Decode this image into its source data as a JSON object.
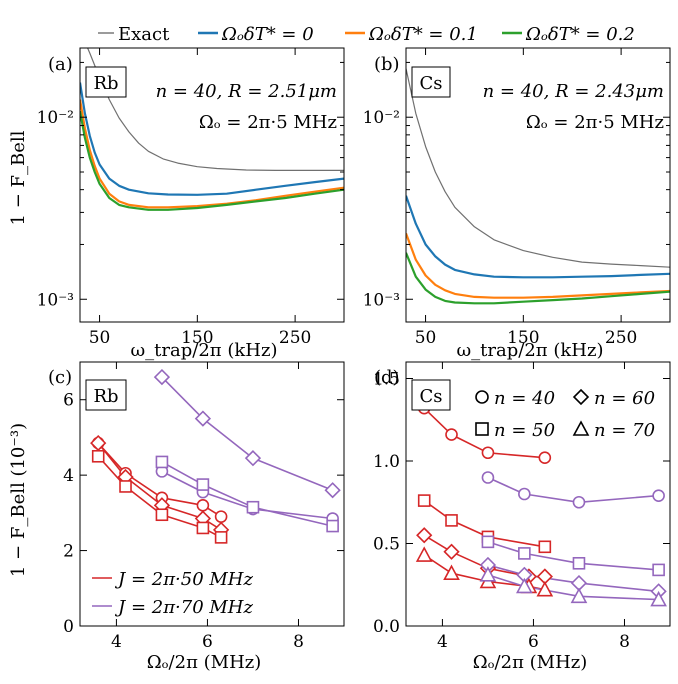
{
  "legend_top": [
    {
      "label": "Exact",
      "color": "#707070"
    },
    {
      "label": "ΩₒδT* = 0",
      "color": "#1f77b4"
    },
    {
      "label": "ΩₒδT* = 0.1",
      "color": "#ff7f0e"
    },
    {
      "label": "ΩₒδT* = 0.2",
      "color": "#2ca02c"
    }
  ],
  "marker_legend": [
    {
      "label": "n = 40",
      "marker": "circle"
    },
    {
      "label": "n = 60",
      "marker": "diamond"
    },
    {
      "label": "n = 50",
      "marker": "square"
    },
    {
      "label": "n = 70",
      "marker": "triangle"
    }
  ],
  "j_legend": [
    {
      "label": "J = 2π·50 MHz",
      "color": "#d62728"
    },
    {
      "label": "J = 2π·70 MHz",
      "color": "#9467bd"
    }
  ],
  "chart_data": [
    {
      "id": "a",
      "type": "line",
      "panel_label": "(a)",
      "species": "Rb",
      "annotation1": "n = 40, R = 2.51μm",
      "annotation2": "Ωₒ = 2π·5 MHz",
      "xlabel": "ω_trap/2π (kHz)",
      "ylabel": "1 − F_Bell",
      "yscale": "log",
      "xlim": [
        30,
        300
      ],
      "ylim": [
        0.00075,
        0.024
      ],
      "xticks": [
        50,
        150,
        250
      ],
      "yticks": [
        {
          "v": 0.001,
          "label": "10⁻³"
        },
        {
          "v": 0.01,
          "label": "10⁻²"
        }
      ],
      "series": [
        {
          "name": "Exact",
          "color": "#707070",
          "width": 1.2,
          "x": [
            30,
            40,
            50,
            60,
            70,
            80,
            90,
            100,
            115,
            130,
            150,
            170,
            200,
            230,
            260,
            300
          ],
          "y": [
            0.03,
            0.0225,
            0.0165,
            0.0125,
            0.0099,
            0.0083,
            0.0072,
            0.0065,
            0.0059,
            0.0056,
            0.00535,
            0.00523,
            0.00513,
            0.0051,
            0.0051,
            0.0051
          ]
        },
        {
          "name": "ΩₒδT* = 0",
          "color": "#1f77b4",
          "width": 2.2,
          "x": [
            30,
            35,
            40,
            45,
            50,
            60,
            70,
            80,
            100,
            120,
            150,
            180,
            210,
            240,
            270,
            300
          ],
          "y": [
            0.0155,
            0.0105,
            0.0079,
            0.0064,
            0.0055,
            0.0046,
            0.0042,
            0.004,
            0.00382,
            0.00376,
            0.00375,
            0.0038,
            0.004,
            0.0042,
            0.0044,
            0.0046
          ]
        },
        {
          "name": "ΩₒδT* = 0.1",
          "color": "#ff7f0e",
          "width": 2.2,
          "x": [
            30,
            35,
            40,
            45,
            50,
            60,
            70,
            80,
            100,
            120,
            150,
            180,
            210,
            240,
            270,
            300
          ],
          "y": [
            0.0125,
            0.0087,
            0.0066,
            0.0054,
            0.0046,
            0.0038,
            0.00345,
            0.0033,
            0.0032,
            0.0032,
            0.00325,
            0.00335,
            0.0035,
            0.0037,
            0.0039,
            0.0041
          ]
        },
        {
          "name": "ΩₒδT* = 0.2",
          "color": "#2ca02c",
          "width": 2.2,
          "x": [
            30,
            35,
            40,
            45,
            50,
            60,
            70,
            80,
            100,
            120,
            150,
            180,
            210,
            240,
            270,
            300
          ],
          "y": [
            0.0108,
            0.0077,
            0.006,
            0.005,
            0.0043,
            0.0036,
            0.0033,
            0.0032,
            0.0031,
            0.0031,
            0.00317,
            0.0033,
            0.00345,
            0.0036,
            0.0038,
            0.004
          ]
        }
      ]
    },
    {
      "id": "b",
      "type": "line",
      "panel_label": "(b)",
      "species": "Cs",
      "annotation1": "n = 40, R = 2.43μm",
      "annotation2": "Ωₒ = 2π·5 MHz",
      "xlabel": "ω_trap/2π (kHz)",
      "ylabel": "",
      "yscale": "log",
      "xlim": [
        30,
        300
      ],
      "ylim": [
        0.00075,
        0.024
      ],
      "xticks": [
        50,
        150,
        250
      ],
      "yticks": [
        {
          "v": 0.001,
          "label": "10⁻³"
        },
        {
          "v": 0.01,
          "label": "10⁻²"
        }
      ],
      "series": [
        {
          "name": "Exact",
          "color": "#707070",
          "width": 1.2,
          "x": [
            30,
            40,
            50,
            60,
            70,
            80,
            100,
            120,
            150,
            180,
            210,
            240,
            270,
            300
          ],
          "y": [
            0.0185,
            0.0105,
            0.0069,
            0.005,
            0.0039,
            0.0032,
            0.0025,
            0.00212,
            0.00185,
            0.0017,
            0.0016,
            0.00156,
            0.00153,
            0.0015
          ]
        },
        {
          "name": "ΩₒδT* = 0",
          "color": "#1f77b4",
          "width": 2.2,
          "x": [
            30,
            40,
            50,
            60,
            70,
            80,
            100,
            120,
            150,
            180,
            210,
            240,
            270,
            300
          ],
          "y": [
            0.0037,
            0.0026,
            0.002,
            0.00172,
            0.00155,
            0.00145,
            0.00137,
            0.00133,
            0.00132,
            0.00132,
            0.00133,
            0.00134,
            0.00136,
            0.00138
          ]
        },
        {
          "name": "ΩₒδT* = 0.1",
          "color": "#ff7f0e",
          "width": 2.2,
          "x": [
            30,
            40,
            50,
            60,
            70,
            80,
            100,
            120,
            150,
            180,
            210,
            240,
            270,
            300
          ],
          "y": [
            0.0023,
            0.00165,
            0.00135,
            0.0012,
            0.00112,
            0.00107,
            0.00103,
            0.00102,
            0.00102,
            0.00103,
            0.00105,
            0.00107,
            0.00109,
            0.00111
          ]
        },
        {
          "name": "ΩₒδT* = 0.2",
          "color": "#2ca02c",
          "width": 2.2,
          "x": [
            30,
            40,
            50,
            60,
            70,
            80,
            100,
            120,
            150,
            180,
            210,
            240,
            270,
            300
          ],
          "y": [
            0.0018,
            0.00133,
            0.00113,
            0.00103,
            0.00098,
            0.00096,
            0.00095,
            0.00095,
            0.00097,
            0.00099,
            0.00101,
            0.00104,
            0.00107,
            0.0011
          ]
        }
      ]
    },
    {
      "id": "c",
      "type": "line",
      "panel_label": "(c)",
      "species": "Rb",
      "xlabel": "Ωₒ/2π (MHz)",
      "ylabel": "1 − F_Bell (10⁻³)",
      "xlim": [
        3.2,
        9.0
      ],
      "ylim": [
        0,
        7.0
      ],
      "xticks": [
        4,
        6,
        8
      ],
      "yticks": [
        {
          "v": 0,
          "label": "0"
        },
        {
          "v": 2,
          "label": "2"
        },
        {
          "v": 4,
          "label": "4"
        },
        {
          "v": 6,
          "label": "6"
        }
      ],
      "series": [
        {
          "name": "J50 n=40",
          "color": "#d62728",
          "marker": "circle",
          "x": [
            3.6,
            4.2,
            5.0,
            5.9,
            6.3
          ],
          "y": [
            4.85,
            4.05,
            3.4,
            3.2,
            2.9
          ]
        },
        {
          "name": "J50 n=60",
          "color": "#d62728",
          "marker": "diamond",
          "x": [
            3.6,
            4.2,
            5.0,
            5.9,
            6.3
          ],
          "y": [
            4.85,
            3.95,
            3.2,
            2.85,
            2.55
          ]
        },
        {
          "name": "J50 n=50",
          "color": "#d62728",
          "marker": "square",
          "x": [
            3.6,
            4.2,
            5.0,
            5.9,
            6.3
          ],
          "y": [
            4.5,
            3.7,
            2.95,
            2.6,
            2.35
          ]
        },
        {
          "name": "J70 n=60",
          "color": "#9467bd",
          "marker": "diamond",
          "x": [
            5.0,
            5.9,
            7.0,
            8.75
          ],
          "y": [
            6.6,
            5.5,
            4.45,
            3.6
          ]
        },
        {
          "name": "J70 n=40",
          "color": "#9467bd",
          "marker": "circle",
          "x": [
            5.0,
            5.9,
            7.0,
            8.75
          ],
          "y": [
            4.1,
            3.55,
            3.1,
            2.85
          ]
        },
        {
          "name": "J70 n=50",
          "color": "#9467bd",
          "marker": "square",
          "x": [
            5.0,
            5.9,
            7.0,
            8.75
          ],
          "y": [
            4.35,
            3.75,
            3.15,
            2.65
          ]
        }
      ]
    },
    {
      "id": "d",
      "type": "line",
      "panel_label": "(d)",
      "species": "Cs",
      "xlabel": "Ωₒ/2π (MHz)",
      "ylabel": "",
      "xlim": [
        3.2,
        9.0
      ],
      "ylim": [
        0,
        1.6
      ],
      "xticks": [
        4,
        6,
        8
      ],
      "yticks": [
        {
          "v": 0,
          "label": "0.0"
        },
        {
          "v": 0.5,
          "label": "0.5"
        },
        {
          "v": 1.0,
          "label": "1.0"
        },
        {
          "v": 1.5,
          "label": "1.5"
        }
      ],
      "series": [
        {
          "name": "J50 n=40",
          "color": "#d62728",
          "marker": "circle",
          "x": [
            3.6,
            4.2,
            5.0,
            6.25
          ],
          "y": [
            1.32,
            1.16,
            1.05,
            1.02
          ]
        },
        {
          "name": "J50 n=50",
          "color": "#d62728",
          "marker": "square",
          "x": [
            3.6,
            4.2,
            5.0,
            6.25
          ],
          "y": [
            0.76,
            0.64,
            0.54,
            0.48
          ]
        },
        {
          "name": "J50 n=60",
          "color": "#d62728",
          "marker": "diamond",
          "x": [
            3.6,
            4.2,
            5.0,
            5.9,
            6.25
          ],
          "y": [
            0.55,
            0.45,
            0.35,
            0.3,
            0.3
          ]
        },
        {
          "name": "J50 n=70",
          "color": "#d62728",
          "marker": "triangle",
          "x": [
            3.6,
            4.2,
            5.0,
            5.9,
            6.25
          ],
          "y": [
            0.43,
            0.32,
            0.27,
            0.24,
            0.22
          ]
        },
        {
          "name": "J70 n=40",
          "color": "#9467bd",
          "marker": "circle",
          "x": [
            5.0,
            5.8,
            7.0,
            8.75
          ],
          "y": [
            0.9,
            0.8,
            0.75,
            0.79
          ]
        },
        {
          "name": "J70 n=50",
          "color": "#9467bd",
          "marker": "square",
          "x": [
            5.0,
            5.8,
            7.0,
            8.75
          ],
          "y": [
            0.51,
            0.44,
            0.38,
            0.34
          ]
        },
        {
          "name": "J70 n=60",
          "color": "#9467bd",
          "marker": "diamond",
          "x": [
            5.0,
            5.8,
            7.0,
            8.75
          ],
          "y": [
            0.37,
            0.31,
            0.26,
            0.21
          ]
        },
        {
          "name": "J70 n=70",
          "color": "#9467bd",
          "marker": "triangle",
          "x": [
            5.0,
            5.8,
            7.0,
            8.75
          ],
          "y": [
            0.31,
            0.24,
            0.18,
            0.16
          ]
        }
      ]
    }
  ]
}
